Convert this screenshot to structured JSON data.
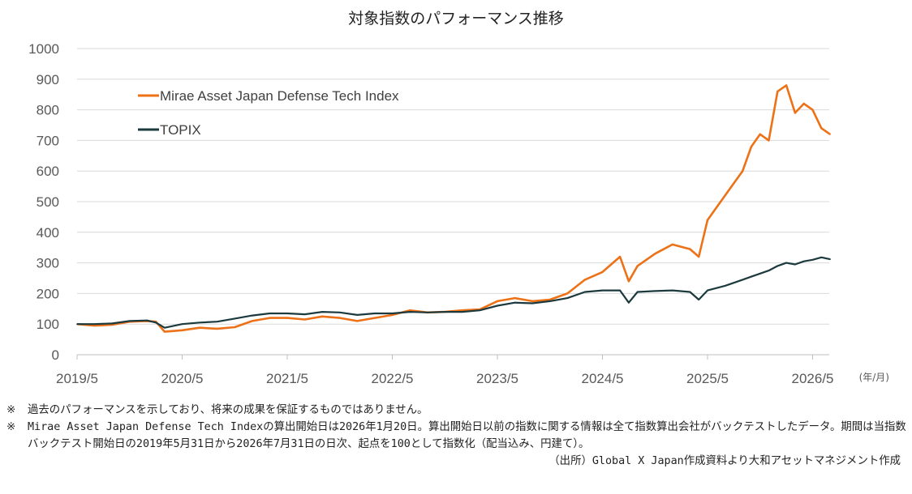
{
  "page": {
    "title": "対象指数のパフォーマンス推移",
    "notes": [
      "過去のパフォーマンスを示しており、将来の成果を保証するものではありません。",
      "Mirae Asset Japan Defense Tech Indexの算出開始日は2026年1月20日。算出開始日以前の指数に関する情報は全て指数算出会社がバックテストしたデータ。期間は当指数バックテスト開始日の2019年5月31日から2026年7月31日の日次、起点を100として指数化（配当込み、円建て）。"
    ],
    "note_mark": "※",
    "source": "（出所）Global X Japan作成資料より大和アセットマネジメント作成"
  },
  "chart_data": {
    "type": "line",
    "title": "対象指数のパフォーマンス推移",
    "xlabel": "",
    "ylabel": "",
    "x_unit_label": "(年/月)",
    "ylim": [
      0,
      1000
    ],
    "yticks": [
      "0",
      "100",
      "200",
      "300",
      "400",
      "500",
      "600",
      "700",
      "800",
      "900",
      "1000"
    ],
    "xticks": [
      "2019/5",
      "2020/5",
      "2021/5",
      "2022/5",
      "2023/5",
      "2024/5",
      "2025/5",
      "2026/5"
    ],
    "grid": "horizontal",
    "legend_position": "top-left",
    "series": [
      {
        "name": "Mirae Asset Japan Defense Tech Index",
        "color": "#ED7117",
        "x": [
          "2019/05",
          "2019/07",
          "2019/09",
          "2019/11",
          "2020/01",
          "2020/02",
          "2020/03",
          "2020/05",
          "2020/07",
          "2020/09",
          "2020/11",
          "2021/01",
          "2021/03",
          "2021/05",
          "2021/07",
          "2021/09",
          "2021/11",
          "2022/01",
          "2022/03",
          "2022/05",
          "2022/07",
          "2022/09",
          "2022/11",
          "2023/01",
          "2023/03",
          "2023/05",
          "2023/07",
          "2023/09",
          "2023/11",
          "2024/01",
          "2024/03",
          "2024/05",
          "2024/07",
          "2024/08",
          "2024/09",
          "2024/11",
          "2025/01",
          "2025/03",
          "2025/04",
          "2025/05",
          "2025/07",
          "2025/09",
          "2025/10",
          "2025/11",
          "2025/12",
          "2026/01",
          "2026/02",
          "2026/03",
          "2026/04",
          "2026/05",
          "2026/06",
          "2026/07"
        ],
        "y": [
          100,
          95,
          98,
          108,
          110,
          108,
          75,
          80,
          88,
          85,
          90,
          110,
          120,
          120,
          115,
          125,
          120,
          110,
          120,
          130,
          145,
          138,
          140,
          145,
          148,
          175,
          185,
          175,
          180,
          200,
          245,
          270,
          320,
          240,
          290,
          330,
          360,
          345,
          320,
          440,
          520,
          600,
          680,
          720,
          700,
          860,
          880,
          790,
          820,
          800,
          740,
          720
        ]
      },
      {
        "name": "TOPIX",
        "color": "#1C3A3E",
        "x": [
          "2019/05",
          "2019/07",
          "2019/09",
          "2019/11",
          "2020/01",
          "2020/02",
          "2020/03",
          "2020/05",
          "2020/07",
          "2020/09",
          "2020/11",
          "2021/01",
          "2021/03",
          "2021/05",
          "2021/07",
          "2021/09",
          "2021/11",
          "2022/01",
          "2022/03",
          "2022/05",
          "2022/07",
          "2022/09",
          "2022/11",
          "2023/01",
          "2023/03",
          "2023/05",
          "2023/07",
          "2023/09",
          "2023/11",
          "2024/01",
          "2024/03",
          "2024/05",
          "2024/07",
          "2024/08",
          "2024/09",
          "2024/11",
          "2025/01",
          "2025/03",
          "2025/04",
          "2025/05",
          "2025/07",
          "2025/09",
          "2025/10",
          "2025/11",
          "2025/12",
          "2026/01",
          "2026/02",
          "2026/03",
          "2026/04",
          "2026/05",
          "2026/06",
          "2026/07"
        ],
        "y": [
          100,
          100,
          102,
          110,
          112,
          105,
          88,
          100,
          105,
          108,
          118,
          128,
          135,
          135,
          132,
          140,
          138,
          130,
          135,
          135,
          140,
          138,
          140,
          140,
          145,
          160,
          170,
          168,
          175,
          185,
          205,
          210,
          210,
          170,
          205,
          208,
          210,
          205,
          180,
          210,
          225,
          245,
          255,
          265,
          275,
          290,
          300,
          295,
          305,
          310,
          318,
          312
        ]
      }
    ]
  }
}
